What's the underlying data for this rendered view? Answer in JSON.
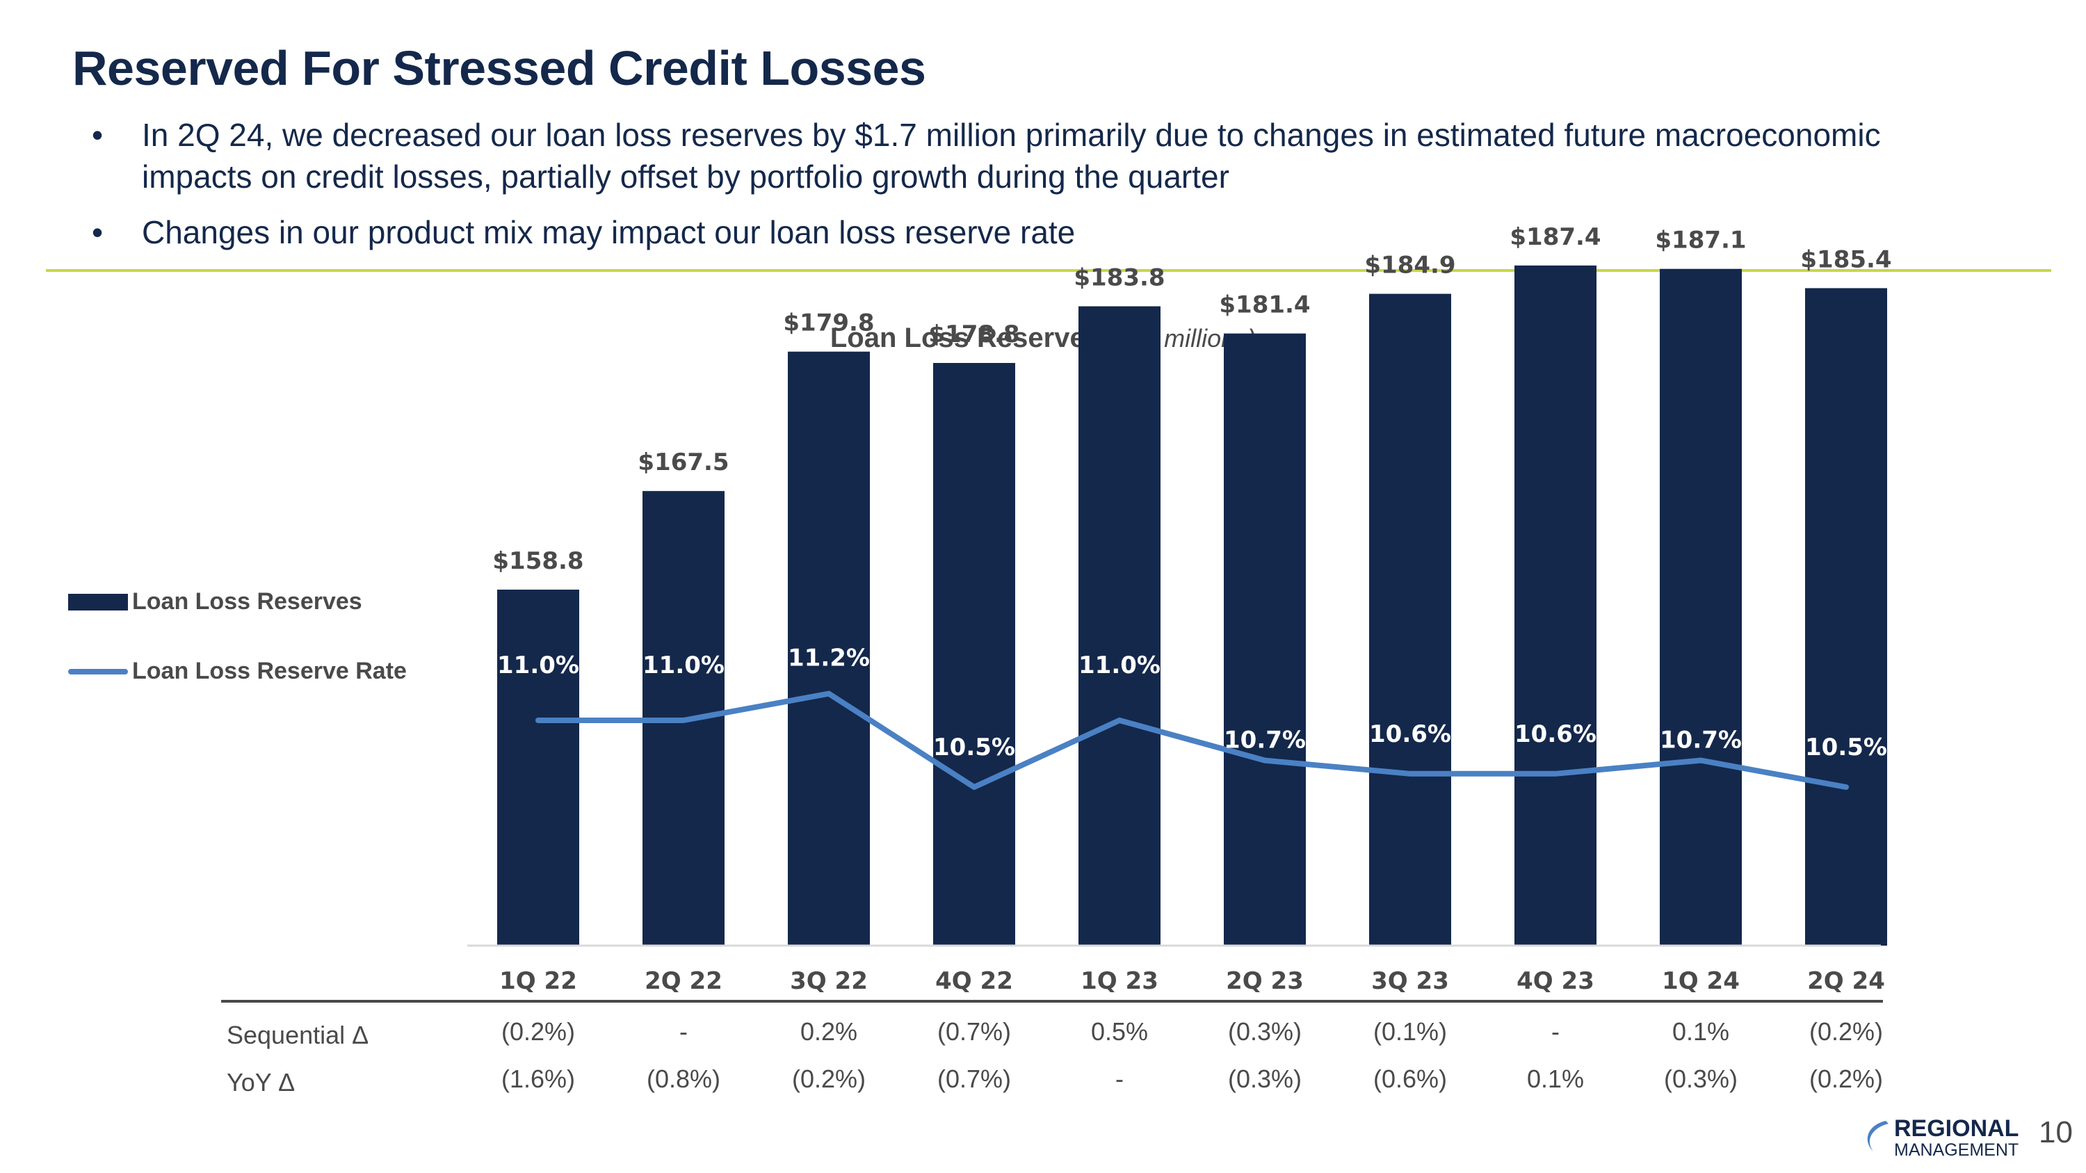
{
  "slide": {
    "title": "Reserved For Stressed Credit Losses",
    "bullets": [
      "In 2Q 24, we decreased our loan loss reserves by $1.7 million primarily due to changes in estimated future macroeconomic impacts on credit losses, partially offset by portfolio growth during the quarter",
      "Changes in our product mix may impact our loan loss reserve rate"
    ],
    "page_number": "10",
    "logo_text_top": "REGIONAL",
    "logo_text_bottom": "MANAGEMENT"
  },
  "colors": {
    "bar": "#14284b",
    "line": "#4a81c4",
    "accent_rule": "#c9d646"
  },
  "chart_data": {
    "type": "bar",
    "title": "Loan Loss Reserves",
    "subtitle": "($ in millions)",
    "categories": [
      "1Q 22",
      "2Q 22",
      "3Q 22",
      "4Q 22",
      "1Q 23",
      "2Q 23",
      "3Q 23",
      "4Q 23",
      "1Q 24",
      "2Q 24"
    ],
    "series": [
      {
        "name": "Loan Loss Reserves",
        "type": "bar",
        "values": [
          158.8,
          167.5,
          179.8,
          178.8,
          183.8,
          181.4,
          184.9,
          187.4,
          187.1,
          185.4
        ],
        "labels": [
          "$158.8",
          "$167.5",
          "$179.8",
          "$178.8",
          "$183.8",
          "$181.4",
          "$184.9",
          "$187.4",
          "$187.1",
          "$185.4"
        ]
      },
      {
        "name": "Loan Loss Reserve Rate",
        "type": "line",
        "values": [
          11.0,
          11.0,
          11.2,
          10.5,
          11.0,
          10.7,
          10.6,
          10.6,
          10.7,
          10.5
        ],
        "labels": [
          "11.0%",
          "11.0%",
          "11.2%",
          "10.5%",
          "11.0%",
          "10.7%",
          "10.6%",
          "10.6%",
          "10.7%",
          "10.5%"
        ]
      }
    ],
    "ylim": [
      0,
      190
    ],
    "legend_position": "left",
    "table": {
      "rows": [
        {
          "label": "Sequential Δ",
          "values": [
            "(0.2%)",
            "-",
            "0.2%",
            "(0.7%)",
            "0.5%",
            "(0.3%)",
            "(0.1%)",
            "-",
            "0.1%",
            "(0.2%)"
          ]
        },
        {
          "label": "YoY Δ",
          "values": [
            "(1.6%)",
            "(0.8%)",
            "(0.2%)",
            "(0.7%)",
            "-",
            "(0.3%)",
            "(0.6%)",
            "0.1%",
            "(0.3%)",
            "(0.2%)"
          ]
        }
      ]
    }
  }
}
